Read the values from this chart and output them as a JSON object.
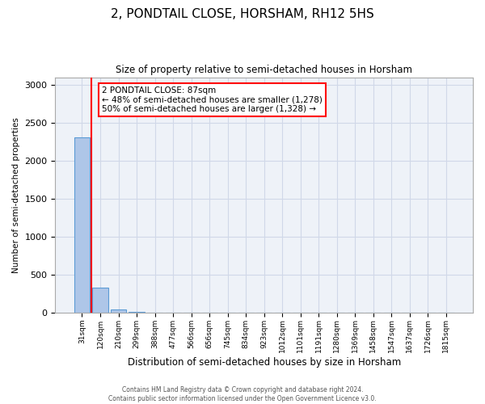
{
  "title": "2, PONDTAIL CLOSE, HORSHAM, RH12 5HS",
  "subtitle": "Size of property relative to semi-detached houses in Horsham",
  "xlabel": "Distribution of semi-detached houses by size in Horsham",
  "ylabel": "Number of semi-detached properties",
  "footer_line1": "Contains HM Land Registry data © Crown copyright and database right 2024.",
  "footer_line2": "Contains public sector information licensed under the Open Government Licence v3.0.",
  "bin_labels": [
    "31sqm",
    "120sqm",
    "210sqm",
    "299sqm",
    "388sqm",
    "477sqm",
    "566sqm",
    "656sqm",
    "745sqm",
    "834sqm",
    "923sqm",
    "1012sqm",
    "1101sqm",
    "1191sqm",
    "1280sqm",
    "1369sqm",
    "1458sqm",
    "1547sqm",
    "1637sqm",
    "1726sqm",
    "1815sqm"
  ],
  "bar_heights": [
    2310,
    330,
    40,
    2,
    1,
    0,
    0,
    0,
    0,
    0,
    0,
    0,
    0,
    0,
    0,
    0,
    0,
    0,
    0,
    0,
    0
  ],
  "bar_color": "#aec6e8",
  "bar_edge_color": "#5b9bd5",
  "property_line_x": 0.5,
  "annotation_title": "2 PONDTAIL CLOSE: 87sqm",
  "annotation_line1": "← 48% of semi-detached houses are smaller (1,278)",
  "annotation_line2": "50% of semi-detached houses are larger (1,328) →",
  "annotation_box_color": "white",
  "annotation_box_edge": "red",
  "red_line_color": "red",
  "ylim": [
    0,
    3100
  ],
  "yticks": [
    0,
    500,
    1000,
    1500,
    2000,
    2500,
    3000
  ],
  "grid_color": "#d0d8e8",
  "background_color": "#eef2f8",
  "title_fontsize": 11,
  "subtitle_fontsize": 8.5
}
